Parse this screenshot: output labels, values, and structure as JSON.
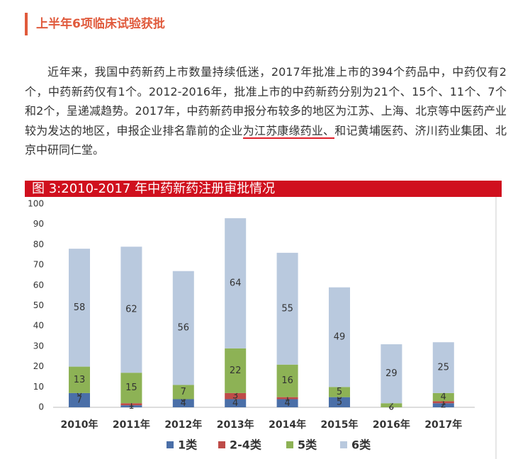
{
  "header": {
    "title": "上半年6项临床试验获批"
  },
  "paragraph": [
    "近年来，我国中药新药上市数量持续低迷，2017年批准上市的394个药品中，中药仅有2个，中药新药仅有1个。2012-2016年，批准上市的中药新药分别为21个、15个、11个、7个和2个，呈递减趋势。2017年，中药新药申报分布较多的地区为江苏、上海、北京等中医药产业较为发达的地区，申报企业排名靠前的企业",
    "为江苏康缘药业、",
    "和记黄埔医药、济川药业集团、北京中研同仁堂。"
  ],
  "chart_data": {
    "type": "stacked-bar",
    "title": "图 3:2010-2017 年中药新药注册审批情况",
    "categories": [
      "2010年",
      "2011年",
      "2012年",
      "2013年",
      "2014年",
      "2015年",
      "2016年",
      "2017年"
    ],
    "series": [
      {
        "name": "1类",
        "color": "#4a6fa8",
        "values": [
          7,
          1,
          4,
          4,
          4,
          5,
          0,
          2
        ]
      },
      {
        "name": "2-4类",
        "color": "#be4b48",
        "values": [
          0,
          1,
          0,
          3,
          1,
          0,
          0,
          1
        ]
      },
      {
        "name": "5类",
        "color": "#8db255",
        "values": [
          13,
          15,
          7,
          22,
          16,
          5,
          2,
          4
        ]
      },
      {
        "name": "6类",
        "color": "#b9c9de",
        "values": [
          58,
          62,
          56,
          64,
          55,
          49,
          29,
          25
        ]
      }
    ],
    "ylim": [
      0,
      100
    ],
    "yticks": [
      0,
      10,
      20,
      30,
      40,
      50,
      60,
      70,
      80,
      90,
      100
    ],
    "grid": false
  }
}
